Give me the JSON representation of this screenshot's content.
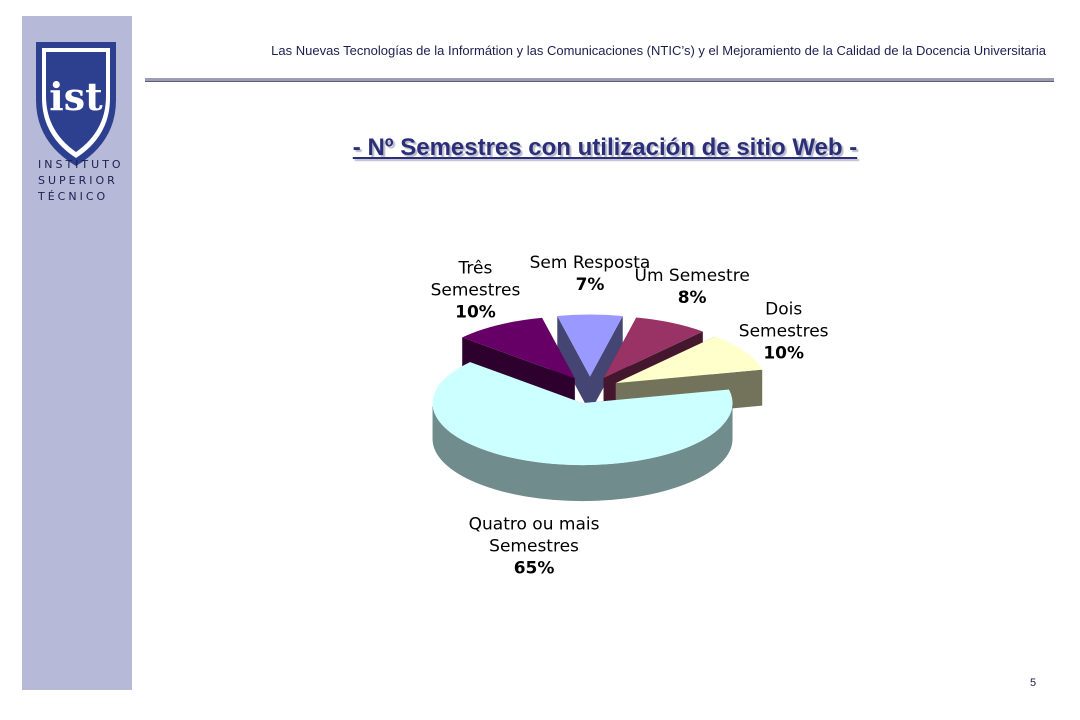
{
  "header": {
    "subtitle": "Las Nuevas Tecnologías de la Informátion y las Comunicaciones (NTIC’s) y el Mejoramiento de la Calidad de la Docencia  Universitaria"
  },
  "logo": {
    "mark": "ist",
    "lines": [
      "INSTITUTO",
      "SUPERIOR",
      "TÉCNICO"
    ]
  },
  "slide_title": "- Nº Semestres con utilización de sitio Web -",
  "page_number": "5",
  "colors": {
    "sidebar": "#b6bad8",
    "title": "#2b2f7a",
    "text": "#1c1f4e"
  },
  "chart_data": {
    "type": "pie",
    "style": "3d-exploded",
    "slices": [
      {
        "label": "Sem Resposta",
        "value": 7,
        "pct_label": "7%",
        "color": "#9999ff"
      },
      {
        "label": "Um Semestre",
        "value": 8,
        "pct_label": "8%",
        "color": "#993366"
      },
      {
        "label": "Dois Semestres",
        "value": 10,
        "pct_label": "10%",
        "color": "#ffffcc"
      },
      {
        "label": "Quatro ou mais Semestres",
        "value": 65,
        "pct_label": "65%",
        "color": "#ccffff"
      },
      {
        "label": "Três Semestres",
        "value": 10,
        "pct_label": "10%",
        "color": "#660066"
      }
    ],
    "label_lines": [
      [
        "Sem Resposta"
      ],
      [
        "Um Semestre"
      ],
      [
        "Dois",
        "Semestres"
      ],
      [
        "Quatro ou mais",
        "Semestres"
      ],
      [
        "Três",
        "Semestres"
      ]
    ]
  }
}
